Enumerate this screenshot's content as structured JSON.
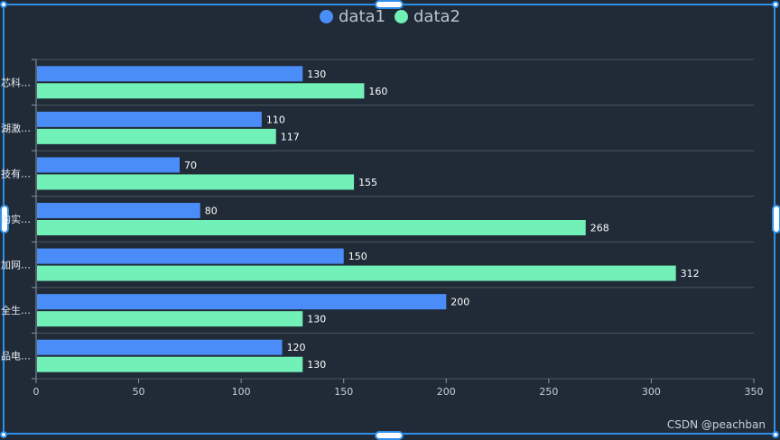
{
  "chart_data": {
    "type": "bar",
    "orientation": "horizontal",
    "categories": [
      "品电…",
      "全生…",
      "加网…",
      "的实…",
      "技有…",
      "湖激…",
      "芯科…"
    ],
    "series": [
      {
        "name": "data1",
        "color": "#4a8df8",
        "values": [
          120,
          200,
          150,
          80,
          70,
          110,
          130
        ]
      },
      {
        "name": "data2",
        "color": "#71f0b7",
        "values": [
          130,
          130,
          312,
          268,
          155,
          117,
          160
        ]
      }
    ],
    "xlim": [
      0,
      350
    ],
    "xticks": [
      0,
      50,
      100,
      150,
      200,
      250,
      300,
      350
    ],
    "legend_position": "top-center",
    "grid": true
  },
  "watermark": "CSDN @peachban"
}
